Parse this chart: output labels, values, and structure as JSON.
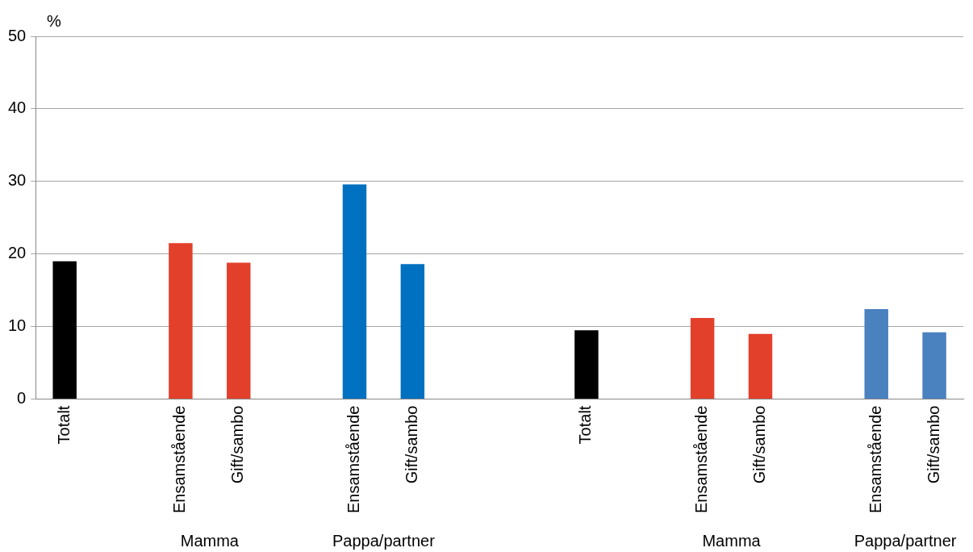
{
  "chart_data": {
    "type": "bar",
    "ylabel": "%",
    "categories": [
      "Totalt",
      null,
      "Ensamstående",
      "Gift/sambo",
      null,
      "Ensamstående",
      "Gift/sambo",
      null,
      null,
      "Totalt",
      null,
      "Ensamstående",
      "Gift/sambo",
      null,
      "Ensamstående",
      "Gift/sambo"
    ],
    "values": [
      19,
      null,
      21.5,
      18.8,
      null,
      29.6,
      18.6,
      null,
      null,
      9.5,
      null,
      11.2,
      9.0,
      null,
      12.4,
      9.2
    ],
    "colors": [
      "#000000",
      "#000000",
      "#e2402b",
      "#e2402b",
      "#000000",
      "#0070c0",
      "#0070c0",
      "#000000",
      "#000000",
      "#000000",
      "#000000",
      "#e2402b",
      "#e2402b",
      "#000000",
      "#4a81bf",
      "#4a81bf"
    ],
    "ylim": [
      0,
      50
    ],
    "yticks": [
      0,
      10,
      20,
      30,
      40,
      50
    ],
    "grid": "y",
    "legend": false,
    "annotations": [
      "Mamma",
      "Pappa/partner",
      "Mamma",
      "Pappa/partner"
    ]
  }
}
